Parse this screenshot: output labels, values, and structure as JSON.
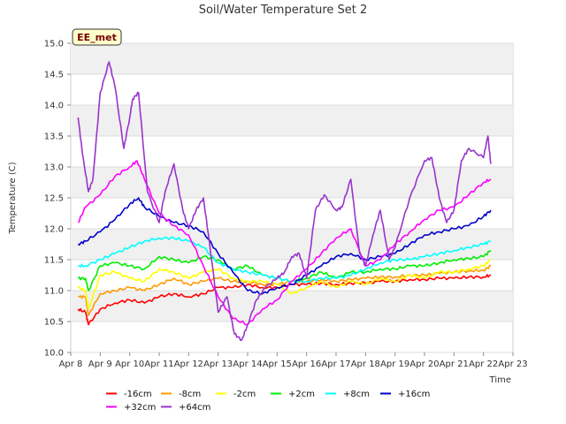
{
  "chart_data": {
    "type": "line",
    "title": "Soil/Water Temperature Set 2",
    "xlabel": "Time",
    "ylabel": "Temperature (C)",
    "badge": "EE_met",
    "xlim": [
      8,
      23
    ],
    "ylim": [
      10.0,
      15.0
    ],
    "x_ticks": [
      {
        "v": 8,
        "label": "Apr 8"
      },
      {
        "v": 9,
        "label": "Apr 9"
      },
      {
        "v": 10,
        "label": "Apr 10"
      },
      {
        "v": 11,
        "label": "Apr 11"
      },
      {
        "v": 12,
        "label": "Apr 12"
      },
      {
        "v": 13,
        "label": "Apr 13"
      },
      {
        "v": 14,
        "label": "Apr 14"
      },
      {
        "v": 15,
        "label": "Apr 15"
      },
      {
        "v": 16,
        "label": "Apr 16"
      },
      {
        "v": 17,
        "label": "Apr 17"
      },
      {
        "v": 18,
        "label": "Apr 18"
      },
      {
        "v": 19,
        "label": "Apr 19"
      },
      {
        "v": 20,
        "label": "Apr 20"
      },
      {
        "v": 21,
        "label": "Apr 21"
      },
      {
        "v": 22,
        "label": "Apr 22"
      },
      {
        "v": 23,
        "label": "Apr 23"
      }
    ],
    "y_ticks": [
      "10.0",
      "10.5",
      "11.0",
      "11.5",
      "12.0",
      "12.5",
      "13.0",
      "13.5",
      "14.0",
      "14.5",
      "15.0"
    ],
    "grid": true,
    "legend_position": "bottom",
    "series": [
      {
        "name": "-16cm",
        "color": "#ff0000",
        "x": [
          8.25,
          8.5,
          8.6,
          9,
          9.5,
          10,
          10.5,
          11,
          11.5,
          12,
          12.5,
          13,
          13.5,
          14,
          14.5,
          15,
          15.5,
          16,
          16.5,
          17,
          17.5,
          18,
          18.5,
          19,
          19.5,
          20,
          20.5,
          21,
          21.5,
          22,
          22.25
        ],
        "y": [
          10.7,
          10.65,
          10.45,
          10.7,
          10.8,
          10.85,
          10.8,
          10.9,
          10.95,
          10.9,
          10.95,
          11.05,
          11.05,
          11.1,
          11.05,
          11.05,
          11.1,
          11.1,
          11.12,
          11.1,
          11.12,
          11.12,
          11.15,
          11.15,
          11.18,
          11.18,
          11.2,
          11.2,
          11.22,
          11.22,
          11.25
        ]
      },
      {
        "name": "-8cm",
        "color": "#ff9900",
        "x": [
          8.25,
          8.5,
          8.6,
          9,
          9.5,
          10,
          10.5,
          11,
          11.5,
          12,
          12.5,
          13,
          13.5,
          14,
          14.5,
          15,
          15.5,
          16,
          16.5,
          17,
          17.5,
          18,
          18.5,
          19,
          19.5,
          20,
          20.5,
          21,
          21.5,
          22,
          22.25
        ],
        "y": [
          10.9,
          10.9,
          10.6,
          10.95,
          11.0,
          11.05,
          11.0,
          11.1,
          11.2,
          11.1,
          11.15,
          11.2,
          11.15,
          11.15,
          11.1,
          11.1,
          11.15,
          11.15,
          11.18,
          11.15,
          11.18,
          11.2,
          11.22,
          11.22,
          11.25,
          11.25,
          11.28,
          11.3,
          11.32,
          11.33,
          11.4
        ]
      },
      {
        "name": "-2cm",
        "color": "#ffff00",
        "x": [
          8.25,
          8.5,
          8.6,
          9,
          9.5,
          10,
          10.5,
          11,
          11.5,
          12,
          12.5,
          13,
          13.5,
          14,
          14.5,
          15,
          15.5,
          16,
          16.5,
          17,
          17.5,
          18,
          18.5,
          19,
          19.5,
          20,
          20.5,
          21,
          21.5,
          22,
          22.25
        ],
        "y": [
          11.05,
          11.0,
          10.7,
          11.25,
          11.3,
          11.2,
          11.15,
          11.35,
          11.3,
          11.2,
          11.3,
          11.35,
          11.2,
          11.15,
          11.15,
          11.1,
          10.95,
          11.05,
          11.15,
          11.05,
          11.15,
          11.1,
          11.2,
          11.15,
          11.25,
          11.2,
          11.3,
          11.3,
          11.35,
          11.4,
          11.5
        ]
      },
      {
        "name": "+2cm",
        "color": "#00ee00",
        "x": [
          8.25,
          8.5,
          8.6,
          9,
          9.5,
          10,
          10.5,
          11,
          11.5,
          12,
          12.5,
          13,
          13.5,
          14,
          14.5,
          15,
          15.5,
          16,
          16.5,
          17,
          17.5,
          18,
          18.5,
          19,
          19.5,
          20,
          20.5,
          21,
          21.5,
          22,
          22.25
        ],
        "y": [
          11.2,
          11.2,
          11.0,
          11.4,
          11.45,
          11.4,
          11.35,
          11.55,
          11.5,
          11.45,
          11.55,
          11.5,
          11.35,
          11.4,
          11.25,
          11.2,
          11.15,
          11.2,
          11.3,
          11.2,
          11.3,
          11.3,
          11.35,
          11.35,
          11.4,
          11.4,
          11.45,
          11.5,
          11.52,
          11.55,
          11.65
        ]
      },
      {
        "name": "+8cm",
        "color": "#00ffff",
        "x": [
          8.25,
          8.5,
          9,
          9.5,
          10,
          10.5,
          11,
          11.5,
          12,
          12.5,
          13,
          13.5,
          14,
          14.5,
          15,
          15.5,
          16,
          16.5,
          17,
          17.5,
          18,
          18.5,
          19,
          19.5,
          20,
          20.5,
          21,
          21.5,
          22,
          22.25
        ],
        "y": [
          11.4,
          11.4,
          11.5,
          11.6,
          11.7,
          11.8,
          11.85,
          11.85,
          11.8,
          11.7,
          11.45,
          11.35,
          11.3,
          11.25,
          11.2,
          11.15,
          11.15,
          11.2,
          11.2,
          11.25,
          11.35,
          11.45,
          11.5,
          11.5,
          11.55,
          11.6,
          11.65,
          11.7,
          11.75,
          11.8
        ]
      },
      {
        "name": "+16cm",
        "color": "#0000cc",
        "x": [
          8.25,
          8.5,
          9,
          9.5,
          10,
          10.3,
          10.5,
          11,
          11.5,
          12,
          12.5,
          13,
          13.5,
          14,
          14.5,
          15,
          15.5,
          16,
          16.5,
          17,
          17.5,
          18,
          18.5,
          19,
          19.5,
          20,
          20.5,
          21,
          21.5,
          22,
          22.25
        ],
        "y": [
          11.75,
          11.8,
          11.95,
          12.15,
          12.4,
          12.5,
          12.35,
          12.2,
          12.1,
          12.05,
          11.95,
          11.6,
          11.3,
          11.0,
          10.95,
          11.05,
          11.1,
          11.25,
          11.4,
          11.55,
          11.6,
          11.5,
          11.55,
          11.6,
          11.75,
          11.9,
          11.95,
          12.0,
          12.05,
          12.2,
          12.3
        ]
      },
      {
        "name": "+32cm",
        "color": "#ff00ff",
        "x": [
          8.25,
          8.5,
          9,
          9.5,
          10,
          10.25,
          10.5,
          11,
          11.5,
          12,
          12.5,
          13,
          13.5,
          14,
          14.5,
          15,
          15.5,
          16,
          16.5,
          17,
          17.5,
          18,
          18.5,
          19,
          19.5,
          20,
          20.5,
          21,
          21.5,
          22,
          22.25
        ],
        "y": [
          12.1,
          12.35,
          12.55,
          12.85,
          13.0,
          13.1,
          12.8,
          12.25,
          12.05,
          11.9,
          11.4,
          10.9,
          10.55,
          10.45,
          10.7,
          10.85,
          11.15,
          11.35,
          11.6,
          11.85,
          12.0,
          11.4,
          11.5,
          11.75,
          11.95,
          12.15,
          12.3,
          12.35,
          12.55,
          12.75,
          12.8
        ]
      },
      {
        "name": "+64cm",
        "color": "#9933cc",
        "x": [
          8.25,
          8.4,
          8.6,
          8.75,
          9,
          9.3,
          9.5,
          9.8,
          10,
          10.1,
          10.3,
          10.6,
          11,
          11.2,
          11.5,
          11.8,
          12,
          12.25,
          12.5,
          12.7,
          13,
          13.3,
          13.55,
          13.8,
          14,
          14.3,
          14.6,
          15,
          15.25,
          15.5,
          15.75,
          16,
          16.3,
          16.6,
          17,
          17.2,
          17.5,
          17.8,
          18,
          18.25,
          18.5,
          18.8,
          19,
          19.5,
          20,
          20.25,
          20.5,
          20.75,
          21,
          21.25,
          21.5,
          22,
          22.15,
          22.25
        ],
        "y": [
          13.8,
          13.2,
          12.6,
          12.8,
          14.2,
          14.7,
          14.3,
          13.3,
          13.8,
          14.1,
          14.2,
          12.6,
          12.1,
          12.6,
          13.05,
          12.3,
          12.0,
          12.3,
          12.5,
          11.8,
          10.65,
          10.9,
          10.3,
          10.2,
          10.45,
          10.85,
          11.05,
          11.2,
          11.3,
          11.55,
          11.6,
          11.2,
          12.3,
          12.55,
          12.3,
          12.35,
          12.8,
          11.6,
          11.4,
          11.9,
          12.3,
          11.5,
          11.7,
          12.5,
          13.1,
          13.15,
          12.5,
          12.1,
          12.3,
          13.1,
          13.3,
          13.15,
          13.5,
          13.05
        ]
      }
    ]
  }
}
